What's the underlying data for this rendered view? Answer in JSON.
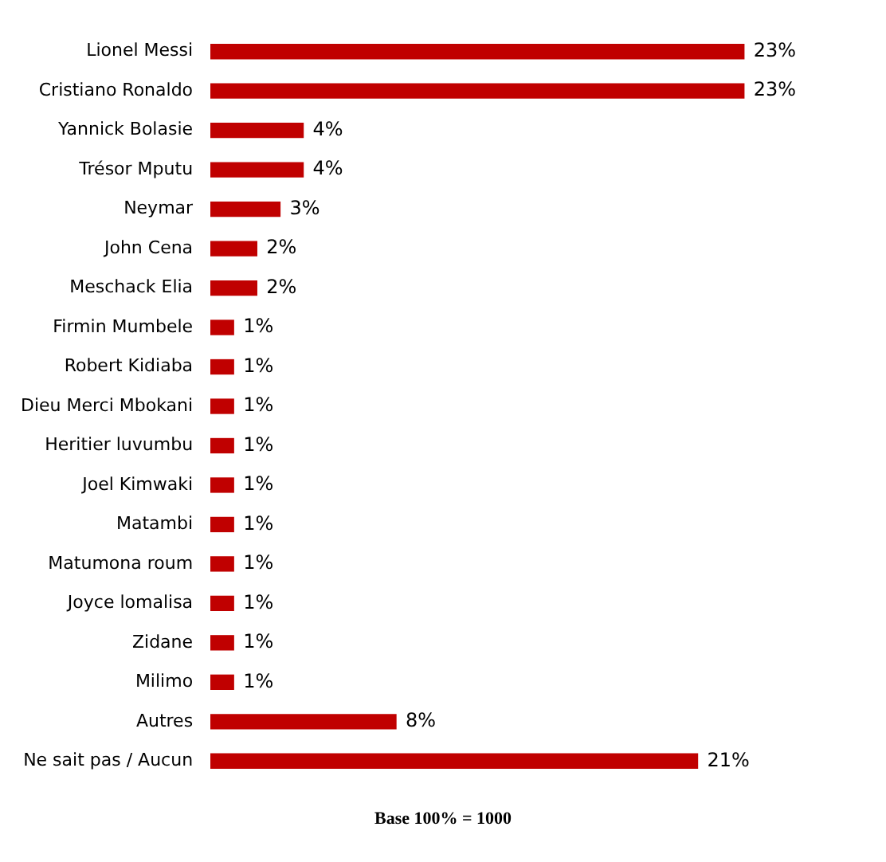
{
  "chart_data": {
    "type": "bar",
    "orientation": "horizontal",
    "categories": [
      "Lionel Messi",
      "Cristiano Ronaldo",
      "Yannick Bolasie",
      "Trésor Mputu",
      "Neymar",
      "John Cena",
      "Meschack Elia",
      "Firmin Mumbele",
      "Robert Kidiaba",
      "Dieu Merci Mbokani",
      "Heritier luvumbu",
      "Joel Kimwaki",
      "Matambi",
      "Matumona roum",
      "Joyce lomalisa",
      "Zidane",
      "Milimo",
      "Autres",
      "Ne sait pas / Aucun"
    ],
    "values": [
      23,
      23,
      4,
      4,
      3,
      2,
      2,
      1,
      1,
      1,
      1,
      1,
      1,
      1,
      1,
      1,
      1,
      8,
      21
    ],
    "value_labels": [
      "23%",
      "23%",
      "4%",
      "4%",
      "3%",
      "2%",
      "2%",
      "1%",
      "1%",
      "1%",
      "1%",
      "1%",
      "1%",
      "1%",
      "1%",
      "1%",
      "1%",
      "8%",
      "21%"
    ],
    "color": "#c00000",
    "tick_labels": "y",
    "legend": false,
    "annotations": [
      "Base 100% = 1000"
    ]
  }
}
